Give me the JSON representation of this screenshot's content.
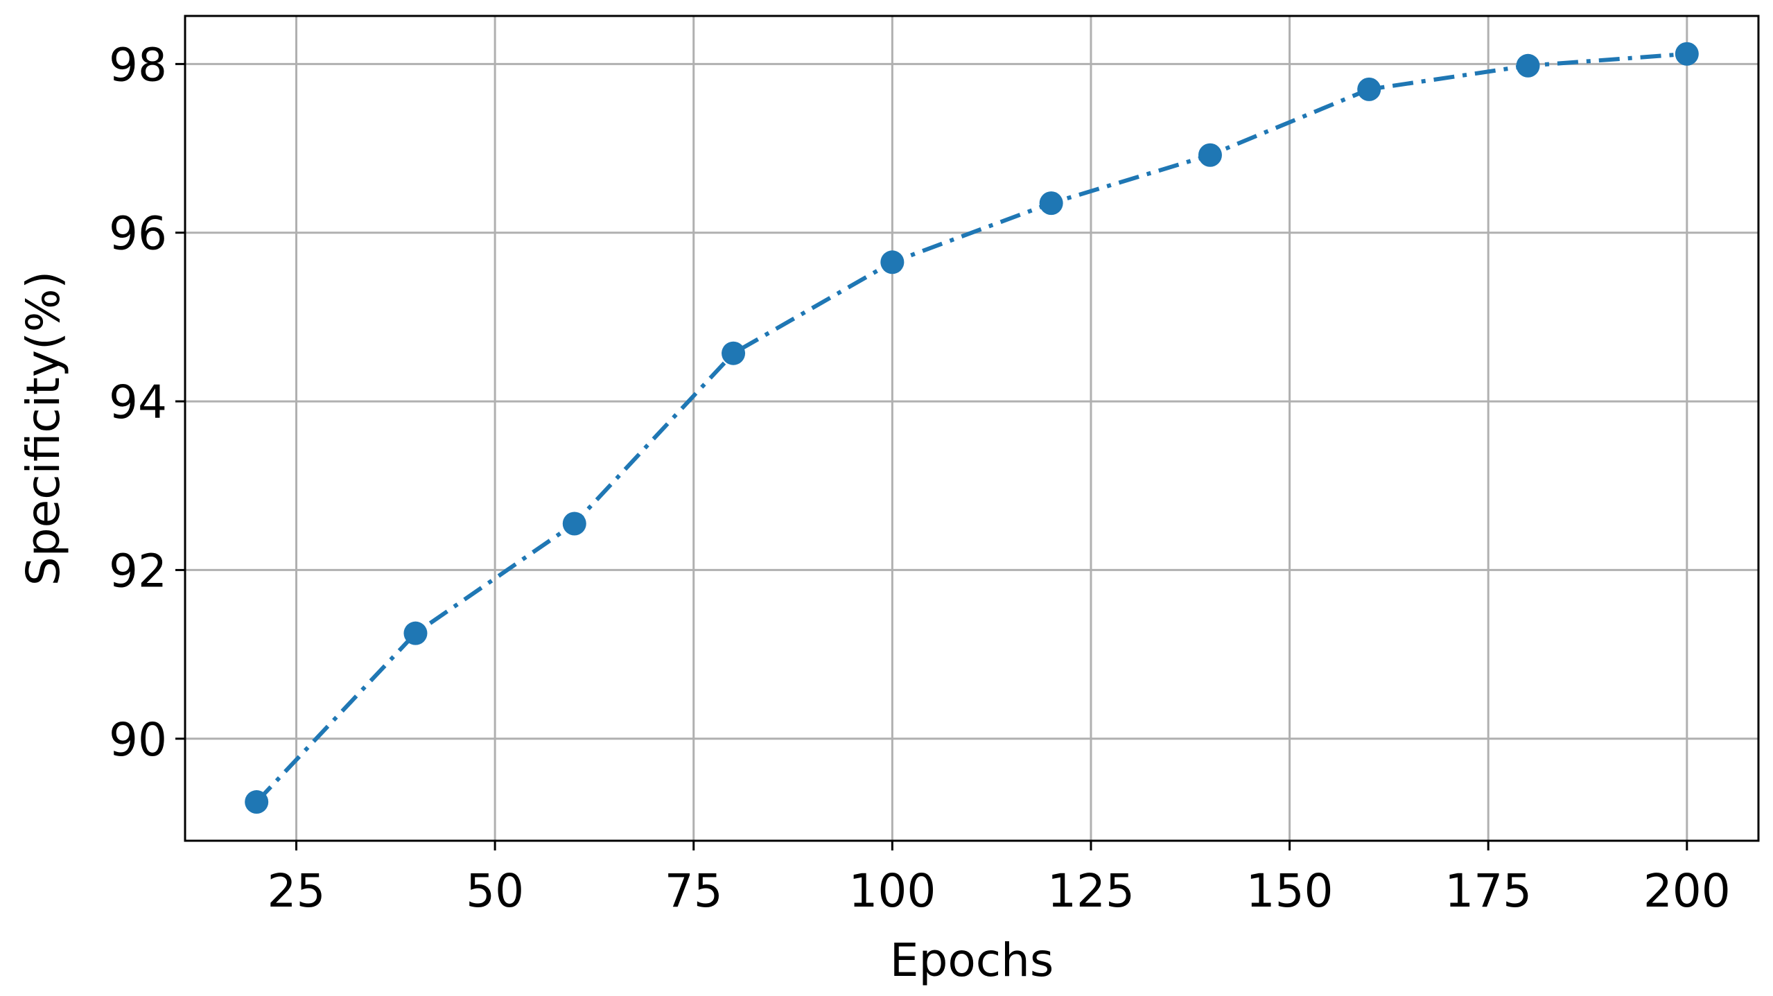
{
  "chart_data": {
    "type": "line",
    "x": [
      20,
      40,
      60,
      80,
      100,
      120,
      140,
      160,
      180,
      200
    ],
    "series": [
      {
        "color": "#1f77b4",
        "values": [
          89.25,
          91.25,
          92.55,
          94.57,
          95.65,
          96.35,
          96.92,
          97.7,
          97.98,
          98.12
        ]
      }
    ],
    "xlabel": "Epochs",
    "ylabel": "Specificity(%)",
    "xlim": [
      11,
      209
    ],
    "ylim": [
      88.79,
      98.57
    ],
    "xticks": [
      25,
      50,
      75,
      100,
      125,
      150,
      175,
      200
    ],
    "yticks": [
      90,
      92,
      94,
      96,
      98
    ],
    "grid": true,
    "line_style": "dashdot",
    "marker": "o"
  }
}
